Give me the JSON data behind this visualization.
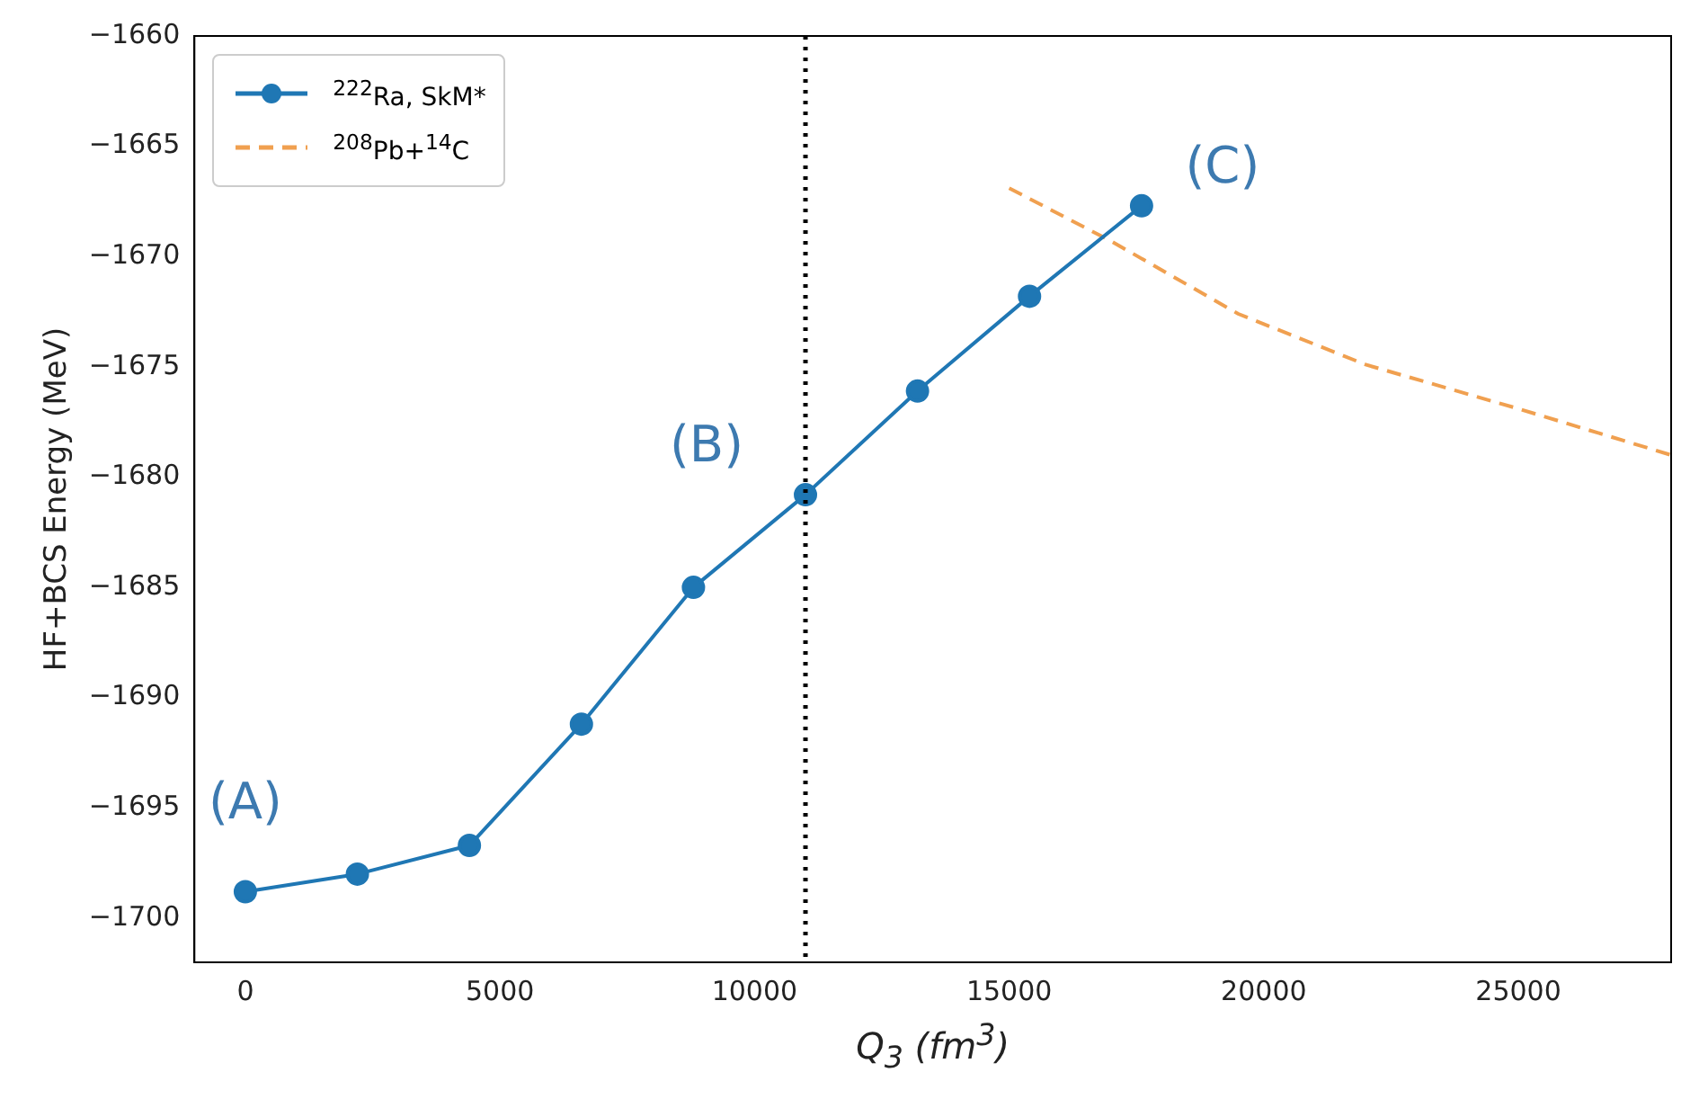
{
  "chart_data": {
    "type": "line",
    "xlabel": "Q$_{3}$ (fm$^{3}$)",
    "ylabel": "HF+BCS Energy (MeV)",
    "xlim": [
      -1000,
      28000
    ],
    "xticks": [
      0,
      5000,
      10000,
      15000,
      20000,
      25000
    ],
    "ylim": [
      -1702,
      -1660
    ],
    "yticks": [
      {
        "value": -1700,
        "label": "−1700"
      },
      {
        "value": -1695,
        "label": "−1695"
      },
      {
        "value": -1690,
        "label": "−1690"
      },
      {
        "value": -1685,
        "label": "−1685"
      },
      {
        "value": -1680,
        "label": "−1680"
      },
      {
        "value": -1675,
        "label": "−1675"
      },
      {
        "value": -1670,
        "label": "−1670"
      },
      {
        "value": -1665,
        "label": "−1665"
      },
      {
        "value": -1660,
        "label": "−1660"
      }
    ],
    "grid": false,
    "legend": "top left",
    "series": [
      {
        "name": "$^{222}$Ra, SkM*",
        "color": "#1f77b4",
        "marker": "circle",
        "line_style": "solid",
        "x": [
          0,
          2200,
          4400,
          6600,
          8800,
          11000,
          13200,
          15400,
          17600
        ],
        "values": [
          -1698.8,
          -1698.0,
          -1696.7,
          -1691.2,
          -1685.0,
          -1680.8,
          -1676.1,
          -1671.8,
          -1667.7
        ]
      },
      {
        "name": "$^{208}$Pb+$^{14}$C",
        "color": "#f0a050",
        "marker": "none",
        "line_style": "dashed",
        "x": [
          15000,
          17000,
          19500,
          22000,
          25000,
          28000
        ],
        "values": [
          -1666.9,
          -1669.3,
          -1672.6,
          -1674.9,
          -1676.9,
          -1679.0
        ]
      }
    ],
    "ref_lines": [
      {
        "axis": "x",
        "value": 11000,
        "color": "#000000",
        "line_style": "dotted"
      }
    ],
    "annotations": [
      {
        "text": "(A)",
        "x": 0,
        "y": -1698.8
      },
      {
        "text": "(B)",
        "x": 11000,
        "y": -1680.8
      },
      {
        "text": "(C)",
        "x": 17600,
        "y": -1667.7
      }
    ]
  }
}
